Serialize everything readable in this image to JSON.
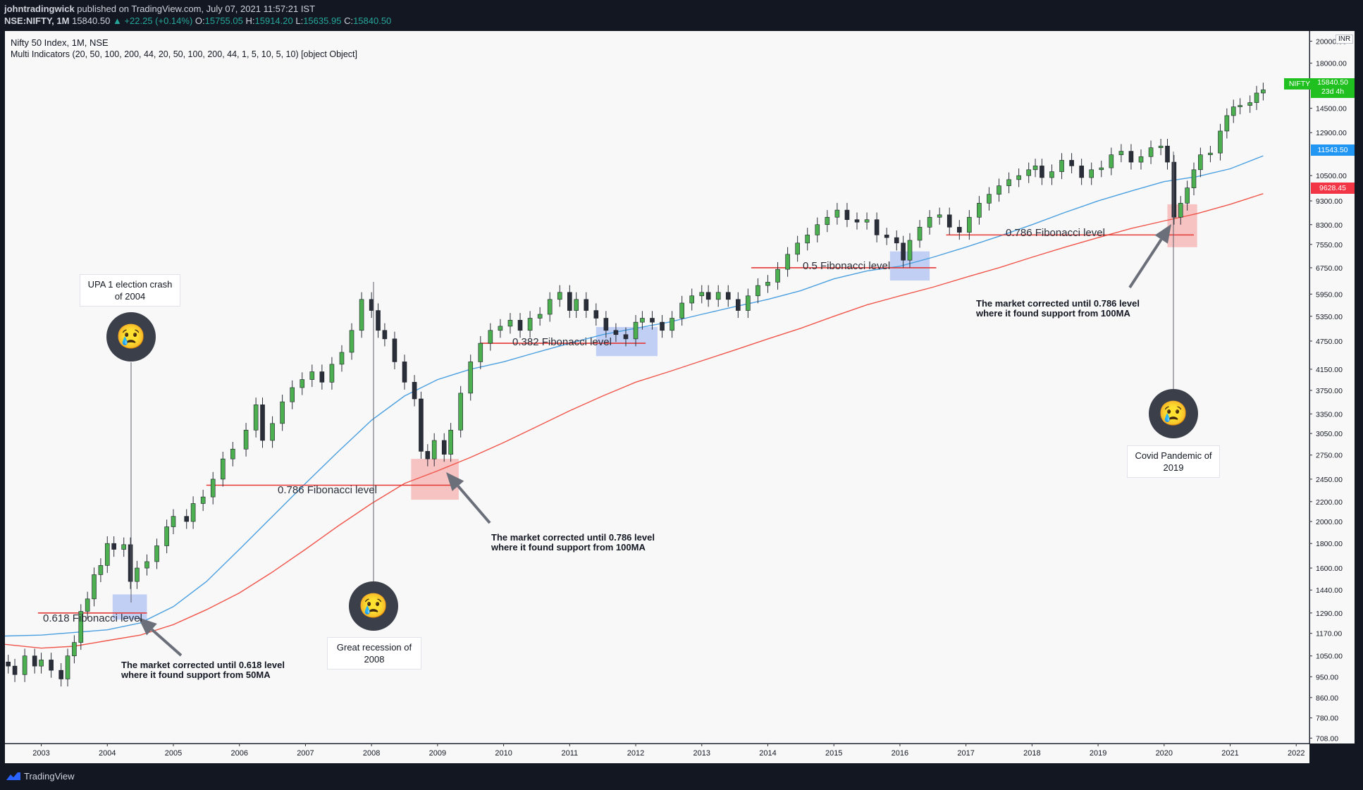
{
  "header": {
    "publisher": "johntradingwick",
    "published_text": "published on TradingView.com, July 07, 2021 11:57:21 IST",
    "symbol": "NSE:NIFTY, 1M",
    "last": "15840.50",
    "change": "▲ +22.25 (+0.14%)",
    "o_label": "O:",
    "o_value": "15755.05",
    "h_label": "H:",
    "h_value": "15914.20",
    "l_label": "L:",
    "l_value": "15635.95",
    "c_label": "C:",
    "c_value": "15840.50"
  },
  "legend": {
    "title": "Nifty 50 Index, 1M, NSE",
    "indicators": "Multi Indicators (20, 50, 100, 200, 44, 20, 50, 100, 200, 44, 1, 5, 10, 5, 10) [object Object]"
  },
  "footer": {
    "brand": "TradingView"
  },
  "annotations": {
    "upa": "UPA 1 election crash of 2004",
    "recession": "Great recession of 2008",
    "covid": "Covid Pandemic of 2019",
    "note_2004": "The market corrected until 0.618 level where it found support from 50MA",
    "note_2009": "The market corrected until 0.786 level where it found support from 100MA",
    "note_2020": "The market corrected until 0.786 level where it found support from 100MA",
    "fib_0618": "0.618 Fibonacci level",
    "fib_0786_a": "0.786 Fibonacci level",
    "fib_0382": "0.382 Fibonacci level",
    "fib_05": "0.5 Fibonacci level",
    "fib_0786_b": "0.786 Fibonacci level",
    "emoji": "😢"
  },
  "price_axis": {
    "unit": "INR",
    "tags": {
      "nifty_label": "NIFTY",
      "nifty_value": "15840.50",
      "nifty_time": "23d 4h",
      "ma_blue": "11543.50",
      "ma_red": "9628.45"
    }
  },
  "colors": {
    "up": "#4caf50",
    "down": "#2a2e39",
    "ma50": "#4a9fe0",
    "ma100": "#f0554a",
    "fib_line": "#e53935",
    "zone_blue": "#b9c8f5",
    "zone_red": "#f7b9b9",
    "tag_green": "#1fc01f",
    "tag_blue": "#2196f3",
    "tag_red": "#f23645"
  },
  "chart_data": {
    "type": "candlestick",
    "scale": "log",
    "title": "Nifty 50 Index, 1M, NSE",
    "x_ticks": [
      "2003",
      "2004",
      "2005",
      "2006",
      "2007",
      "2008",
      "2009",
      "2010",
      "2011",
      "2012",
      "2013",
      "2014",
      "2015",
      "2016",
      "2017",
      "2018",
      "2019",
      "2020",
      "2021",
      "2022"
    ],
    "y_ticks": [
      "20000.00",
      "18000.00",
      "16500.00",
      "14500.00",
      "12900.00",
      "11543.50",
      "10500.00",
      "9628.45",
      "9300.00",
      "8300.00",
      "7550.00",
      "6750.00",
      "5950.00",
      "5350.00",
      "4750.00",
      "4150.00",
      "3750.00",
      "3350.00",
      "3050.00",
      "2750.00",
      "2450.00",
      "2200.00",
      "2000.00",
      "1800.00",
      "1600.00",
      "1440.00",
      "1290.00",
      "1170.00",
      "1050.00",
      "950.00",
      "860.00",
      "780.00",
      "708.00"
    ],
    "ylim": [
      690,
      21000
    ],
    "xlim": [
      2002.45,
      2022.2
    ],
    "close_series": [
      [
        2002.5,
        1000
      ],
      [
        2002.6,
        960
      ],
      [
        2002.75,
        1050
      ],
      [
        2002.9,
        1000
      ],
      [
        2003.0,
        1030
      ],
      [
        2003.15,
        980
      ],
      [
        2003.3,
        940
      ],
      [
        2003.4,
        1050
      ],
      [
        2003.5,
        1120
      ],
      [
        2003.6,
        1300
      ],
      [
        2003.7,
        1380
      ],
      [
        2003.8,
        1550
      ],
      [
        2003.9,
        1620
      ],
      [
        2004.0,
        1800
      ],
      [
        2004.1,
        1750
      ],
      [
        2004.25,
        1790
      ],
      [
        2004.35,
        1500
      ],
      [
        2004.45,
        1600
      ],
      [
        2004.6,
        1650
      ],
      [
        2004.75,
        1780
      ],
      [
        2004.9,
        1950
      ],
      [
        2005.0,
        2050
      ],
      [
        2005.2,
        2000
      ],
      [
        2005.3,
        2180
      ],
      [
        2005.45,
        2250
      ],
      [
        2005.6,
        2450
      ],
      [
        2005.75,
        2700
      ],
      [
        2005.9,
        2830
      ],
      [
        2006.1,
        3100
      ],
      [
        2006.25,
        3500
      ],
      [
        2006.35,
        2950
      ],
      [
        2006.5,
        3200
      ],
      [
        2006.65,
        3550
      ],
      [
        2006.8,
        3800
      ],
      [
        2006.95,
        3950
      ],
      [
        2007.1,
        4100
      ],
      [
        2007.25,
        3900
      ],
      [
        2007.4,
        4250
      ],
      [
        2007.55,
        4500
      ],
      [
        2007.7,
        5000
      ],
      [
        2007.85,
        5800
      ],
      [
        2008.0,
        5500
      ],
      [
        2008.1,
        5000
      ],
      [
        2008.2,
        4800
      ],
      [
        2008.35,
        4300
      ],
      [
        2008.5,
        3900
      ],
      [
        2008.65,
        3600
      ],
      [
        2008.75,
        2800
      ],
      [
        2008.85,
        2700
      ],
      [
        2008.95,
        2950
      ],
      [
        2009.1,
        2760
      ],
      [
        2009.2,
        3100
      ],
      [
        2009.35,
        3700
      ],
      [
        2009.5,
        4300
      ],
      [
        2009.65,
        4700
      ],
      [
        2009.8,
        5000
      ],
      [
        2009.95,
        5100
      ],
      [
        2010.1,
        5250
      ],
      [
        2010.25,
        5000
      ],
      [
        2010.4,
        5300
      ],
      [
        2010.55,
        5400
      ],
      [
        2010.7,
        5800
      ],
      [
        2010.85,
        6000
      ],
      [
        2011.0,
        5500
      ],
      [
        2011.1,
        5800
      ],
      [
        2011.25,
        5500
      ],
      [
        2011.4,
        5300
      ],
      [
        2011.55,
        5000
      ],
      [
        2011.7,
        4900
      ],
      [
        2011.85,
        4800
      ],
      [
        2012.0,
        5200
      ],
      [
        2012.1,
        5300
      ],
      [
        2012.25,
        5200
      ],
      [
        2012.4,
        5000
      ],
      [
        2012.55,
        5300
      ],
      [
        2012.7,
        5700
      ],
      [
        2012.85,
        5900
      ],
      [
        2013.0,
        6000
      ],
      [
        2013.1,
        5800
      ],
      [
        2013.25,
        6000
      ],
      [
        2013.4,
        5800
      ],
      [
        2013.55,
        5500
      ],
      [
        2013.7,
        5900
      ],
      [
        2013.85,
        6200
      ],
      [
        2014.0,
        6300
      ],
      [
        2014.15,
        6700
      ],
      [
        2014.3,
        7200
      ],
      [
        2014.45,
        7600
      ],
      [
        2014.6,
        7900
      ],
      [
        2014.75,
        8300
      ],
      [
        2014.9,
        8600
      ],
      [
        2015.05,
        8900
      ],
      [
        2015.2,
        8500
      ],
      [
        2015.35,
        8400
      ],
      [
        2015.5,
        8500
      ],
      [
        2015.65,
        7900
      ],
      [
        2015.8,
        7800
      ],
      [
        2015.95,
        7600
      ],
      [
        2016.05,
        7000
      ],
      [
        2016.15,
        7700
      ],
      [
        2016.3,
        8200
      ],
      [
        2016.45,
        8600
      ],
      [
        2016.6,
        8700
      ],
      [
        2016.75,
        8200
      ],
      [
        2016.9,
        8000
      ],
      [
        2017.05,
        8600
      ],
      [
        2017.2,
        9200
      ],
      [
        2017.35,
        9600
      ],
      [
        2017.5,
        10000
      ],
      [
        2017.65,
        10300
      ],
      [
        2017.8,
        10500
      ],
      [
        2017.95,
        10800
      ],
      [
        2018.05,
        11000
      ],
      [
        2018.15,
        10400
      ],
      [
        2018.3,
        10700
      ],
      [
        2018.45,
        11300
      ],
      [
        2018.6,
        11000
      ],
      [
        2018.75,
        10400
      ],
      [
        2018.9,
        10800
      ],
      [
        2019.05,
        10900
      ],
      [
        2019.2,
        11600
      ],
      [
        2019.35,
        11800
      ],
      [
        2019.5,
        11200
      ],
      [
        2019.65,
        11500
      ],
      [
        2019.8,
        12000
      ],
      [
        2019.95,
        12100
      ],
      [
        2020.05,
        11200
      ],
      [
        2020.15,
        8600
      ],
      [
        2020.25,
        9200
      ],
      [
        2020.35,
        9900
      ],
      [
        2020.45,
        10800
      ],
      [
        2020.55,
        11600
      ],
      [
        2020.7,
        11700
      ],
      [
        2020.85,
        13000
      ],
      [
        2020.95,
        14000
      ],
      [
        2021.05,
        14600
      ],
      [
        2021.15,
        14700
      ],
      [
        2021.3,
        14900
      ],
      [
        2021.4,
        15600
      ],
      [
        2021.5,
        15840
      ]
    ],
    "ma_50_series": [
      [
        2002.45,
        1155
      ],
      [
        2003.0,
        1160
      ],
      [
        2003.5,
        1175
      ],
      [
        2004.0,
        1190
      ],
      [
        2004.5,
        1230
      ],
      [
        2005.0,
        1330
      ],
      [
        2005.5,
        1500
      ],
      [
        2006.0,
        1750
      ],
      [
        2006.5,
        2050
      ],
      [
        2007.0,
        2400
      ],
      [
        2007.5,
        2800
      ],
      [
        2008.0,
        3250
      ],
      [
        2008.5,
        3650
      ],
      [
        2009.0,
        3950
      ],
      [
        2009.5,
        4150
      ],
      [
        2010.0,
        4300
      ],
      [
        2010.5,
        4500
      ],
      [
        2011.0,
        4700
      ],
      [
        2011.5,
        4900
      ],
      [
        2012.0,
        5050
      ],
      [
        2012.5,
        5200
      ],
      [
        2013.0,
        5400
      ],
      [
        2013.5,
        5600
      ],
      [
        2014.0,
        5800
      ],
      [
        2014.5,
        6050
      ],
      [
        2015.0,
        6400
      ],
      [
        2015.5,
        6650
      ],
      [
        2016.0,
        6800
      ],
      [
        2016.5,
        7100
      ],
      [
        2017.0,
        7450
      ],
      [
        2017.5,
        7850
      ],
      [
        2018.0,
        8300
      ],
      [
        2018.5,
        8800
      ],
      [
        2019.0,
        9300
      ],
      [
        2019.5,
        9750
      ],
      [
        2020.0,
        10200
      ],
      [
        2020.5,
        10450
      ],
      [
        2021.0,
        10850
      ],
      [
        2021.5,
        11543
      ]
    ],
    "ma_100_series": [
      [
        2002.45,
        1110
      ],
      [
        2003.0,
        1090
      ],
      [
        2003.5,
        1100
      ],
      [
        2004.0,
        1130
      ],
      [
        2004.5,
        1160
      ],
      [
        2005.0,
        1220
      ],
      [
        2005.5,
        1310
      ],
      [
        2006.0,
        1420
      ],
      [
        2006.5,
        1570
      ],
      [
        2007.0,
        1750
      ],
      [
        2007.5,
        1960
      ],
      [
        2008.0,
        2180
      ],
      [
        2008.5,
        2400
      ],
      [
        2009.0,
        2550
      ],
      [
        2009.5,
        2720
      ],
      [
        2010.0,
        2920
      ],
      [
        2010.5,
        3150
      ],
      [
        2011.0,
        3400
      ],
      [
        2011.5,
        3650
      ],
      [
        2012.0,
        3900
      ],
      [
        2012.5,
        4100
      ],
      [
        2013.0,
        4320
      ],
      [
        2013.5,
        4550
      ],
      [
        2014.0,
        4800
      ],
      [
        2014.5,
        5050
      ],
      [
        2015.0,
        5350
      ],
      [
        2015.5,
        5650
      ],
      [
        2016.0,
        5900
      ],
      [
        2016.5,
        6150
      ],
      [
        2017.0,
        6450
      ],
      [
        2017.5,
        6750
      ],
      [
        2018.0,
        7100
      ],
      [
        2018.5,
        7450
      ],
      [
        2019.0,
        7800
      ],
      [
        2019.5,
        8150
      ],
      [
        2020.0,
        8450
      ],
      [
        2020.5,
        8750
      ],
      [
        2021.0,
        9150
      ],
      [
        2021.5,
        9628
      ]
    ],
    "fib_levels": [
      {
        "label": "0.618 Fibonacci level",
        "price": 1290,
        "x_from": 2002.95,
        "x_to": 2004.6
      },
      {
        "label": "0.786 Fibonacci level",
        "price": 2380,
        "x_from": 2005.5,
        "x_to": 2009.3
      },
      {
        "label": "0.382 Fibonacci level",
        "price": 4700,
        "x_from": 2009.65,
        "x_to": 2012.15
      },
      {
        "label": "0.5 Fibonacci level",
        "price": 6750,
        "x_from": 2013.75,
        "x_to": 2016.55
      },
      {
        "label": "0.786 Fibonacci level",
        "price": 7900,
        "x_from": 2016.7,
        "x_to": 2020.45
      }
    ]
  }
}
